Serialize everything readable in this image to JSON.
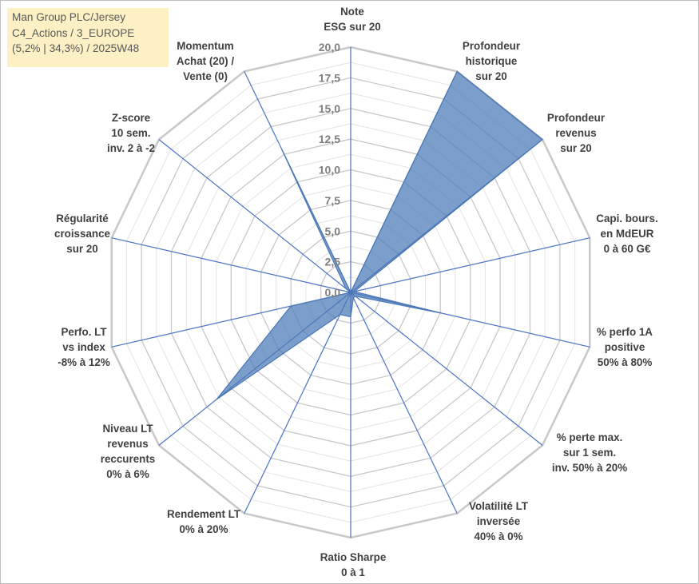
{
  "title_lines": [
    "Man Group PLC/Jersey",
    "C4_Actions / 3_EUROPE",
    "(5,2% | 34,3%) / 2025W48"
  ],
  "chart_data": {
    "type": "radar",
    "axes": [
      {
        "label": [
          "Note",
          "ESG sur 20"
        ],
        "value": 0
      },
      {
        "label": [
          "Profondeur",
          "historique",
          "sur 20"
        ],
        "value": 20
      },
      {
        "label": [
          "Profondeur",
          "revenus",
          "sur 20"
        ],
        "value": 20
      },
      {
        "label": [
          "Capi. bours.",
          "en MdEUR",
          "0 à 60 G€"
        ],
        "value": 0.3
      },
      {
        "label": [
          "% perfo 1A",
          "positive",
          "50% à 80%"
        ],
        "value": 7.6
      },
      {
        "label": [
          "% perte max.",
          "sur 1 sem.",
          "inv. 50% à 20%"
        ],
        "value": 0.5
      },
      {
        "label": [
          "Volatilité LT",
          "inversée",
          "40% à 0%"
        ],
        "value": 0.5
      },
      {
        "label": [
          "Ratio Sharpe",
          "0 à 1"
        ],
        "value": 2.0
      },
      {
        "label": [
          "Rendement LT",
          "0% à 20%"
        ],
        "value": 2.0
      },
      {
        "label": [
          "Niveau LT",
          "revenus",
          "reccurents",
          "0% à 6%"
        ],
        "value": 14.0
      },
      {
        "label": [
          "Perfo. LT",
          "vs index",
          "-8% à 12%"
        ],
        "value": 5.0
      },
      {
        "label": [
          "Régularité",
          "croissance",
          "sur 20"
        ],
        "value": 0
      },
      {
        "label": [
          "Z-score",
          "10 sem.",
          "inv. 2 à -2"
        ],
        "value": 0.5
      },
      {
        "label": [
          "Momentum",
          "Achat (20) /",
          "Vente (0)"
        ],
        "value": 13.0
      }
    ],
    "rmin": 0,
    "rmax": 20,
    "ticks": [
      "0,0",
      "2,5",
      "5,0",
      "7,5",
      "10,0",
      "12,5",
      "15,0",
      "17,5",
      "20,0"
    ],
    "grid": true,
    "colors": {
      "fill": "#4a78b5",
      "spoke": "#4a72c4",
      "grid_major": "#c8c8c8",
      "grid_minor": "#e3e3e3"
    }
  }
}
